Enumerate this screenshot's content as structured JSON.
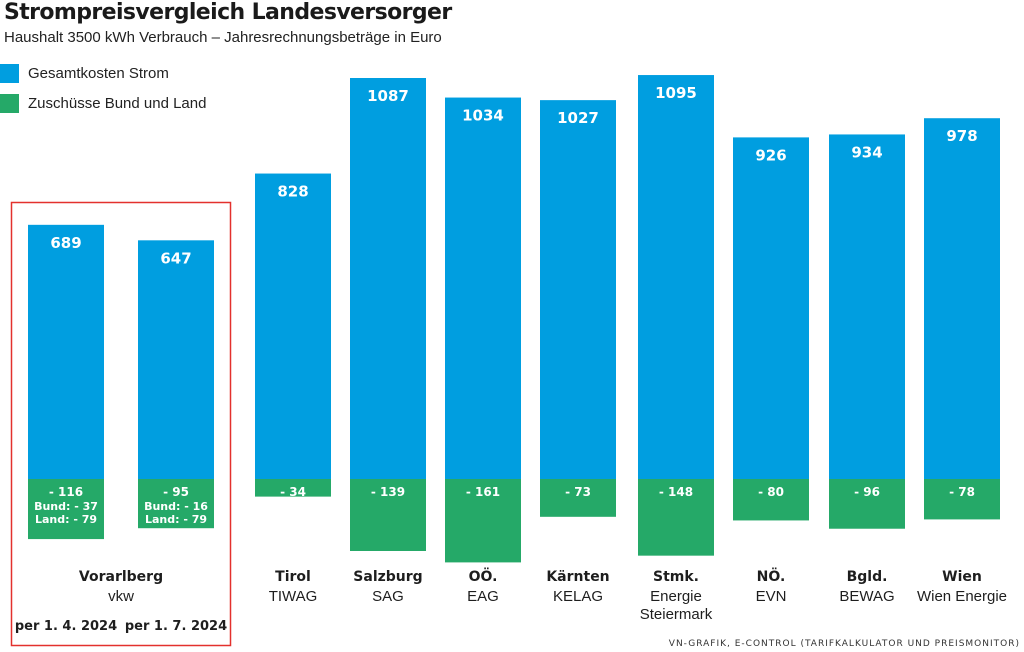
{
  "title": "Strompreisvergleich Landesversorger",
  "subtitle": "Haushalt 3500 kWh Verbrauch – Jahresrechnungsbeträge in Euro",
  "legend": [
    {
      "label": "Gesamtkosten Strom",
      "color": "#009ee0"
    },
    {
      "label": "Zuschüsse Bund und Land",
      "color": "#25a968"
    }
  ],
  "source": "VN-GRAFIK, E-CONTROL (TARIFKALKULATOR UND PREISMONITOR)",
  "colors": {
    "cost": "#009ee0",
    "subsidy": "#25a968",
    "highlight": "#e3312d",
    "text": "#1e1e1e"
  },
  "chart_data": {
    "type": "bar",
    "title": "Strompreisvergleich Landesversorger",
    "subtitle": "Haushalt 3500 kWh Verbrauch – Jahresrechnungsbeträge in Euro",
    "unit": "Euro",
    "series": [
      {
        "name": "Gesamtkosten Strom",
        "values": [
          689,
          647,
          828,
          1087,
          1034,
          1027,
          1095,
          926,
          934,
          978
        ]
      },
      {
        "name": "Zuschüsse Bund und Land",
        "values": [
          -116,
          -95,
          -34,
          -139,
          -161,
          -73,
          -148,
          -80,
          -96,
          -78
        ]
      }
    ],
    "bars": [
      {
        "value": 689,
        "value_label": "689",
        "subsidy": -116,
        "subsidy_label": "- 116",
        "subsidy_details": [
          "Bund: - 37",
          "Land: - 79"
        ]
      },
      {
        "value": 647,
        "value_label": "647",
        "subsidy": -95,
        "subsidy_label": "- 95",
        "subsidy_details": [
          "Bund: - 16",
          "Land: - 79"
        ]
      },
      {
        "value": 828,
        "value_label": "828",
        "subsidy": -34,
        "subsidy_label": "- 34",
        "region": "Tirol",
        "provider": [
          "TIWAG"
        ]
      },
      {
        "value": 1087,
        "value_label": "1087",
        "subsidy": -139,
        "subsidy_label": "- 139",
        "region": "Salzburg",
        "provider": [
          "SAG"
        ]
      },
      {
        "value": 1034,
        "value_label": "1034",
        "subsidy": -161,
        "subsidy_label": "- 161",
        "region": "OÖ.",
        "provider": [
          "EAG"
        ]
      },
      {
        "value": 1027,
        "value_label": "1027",
        "subsidy": -73,
        "subsidy_label": "- 73",
        "region": "Kärnten",
        "provider": [
          "KELAG"
        ]
      },
      {
        "value": 1095,
        "value_label": "1095",
        "subsidy": -148,
        "subsidy_label": "- 148",
        "region": "Stmk.",
        "provider": [
          "Energie",
          "Steiermark"
        ]
      },
      {
        "value": 926,
        "value_label": "926",
        "subsidy": -80,
        "subsidy_label": "- 80",
        "region": "NÖ.",
        "provider": [
          "EVN"
        ]
      },
      {
        "value": 934,
        "value_label": "934",
        "subsidy": -96,
        "subsidy_label": "- 96",
        "region": "Bgld.",
        "provider": [
          "BEWAG"
        ]
      },
      {
        "value": 978,
        "value_label": "978",
        "subsidy": -78,
        "subsidy_label": "- 78",
        "region": "Wien",
        "provider": [
          "Wien Energie"
        ]
      }
    ],
    "highlight_group": {
      "region": "Vorarlberg",
      "provider": "vkw",
      "dates": [
        "per 1. 4. 2024",
        "per 1. 7. 2024"
      ]
    }
  }
}
